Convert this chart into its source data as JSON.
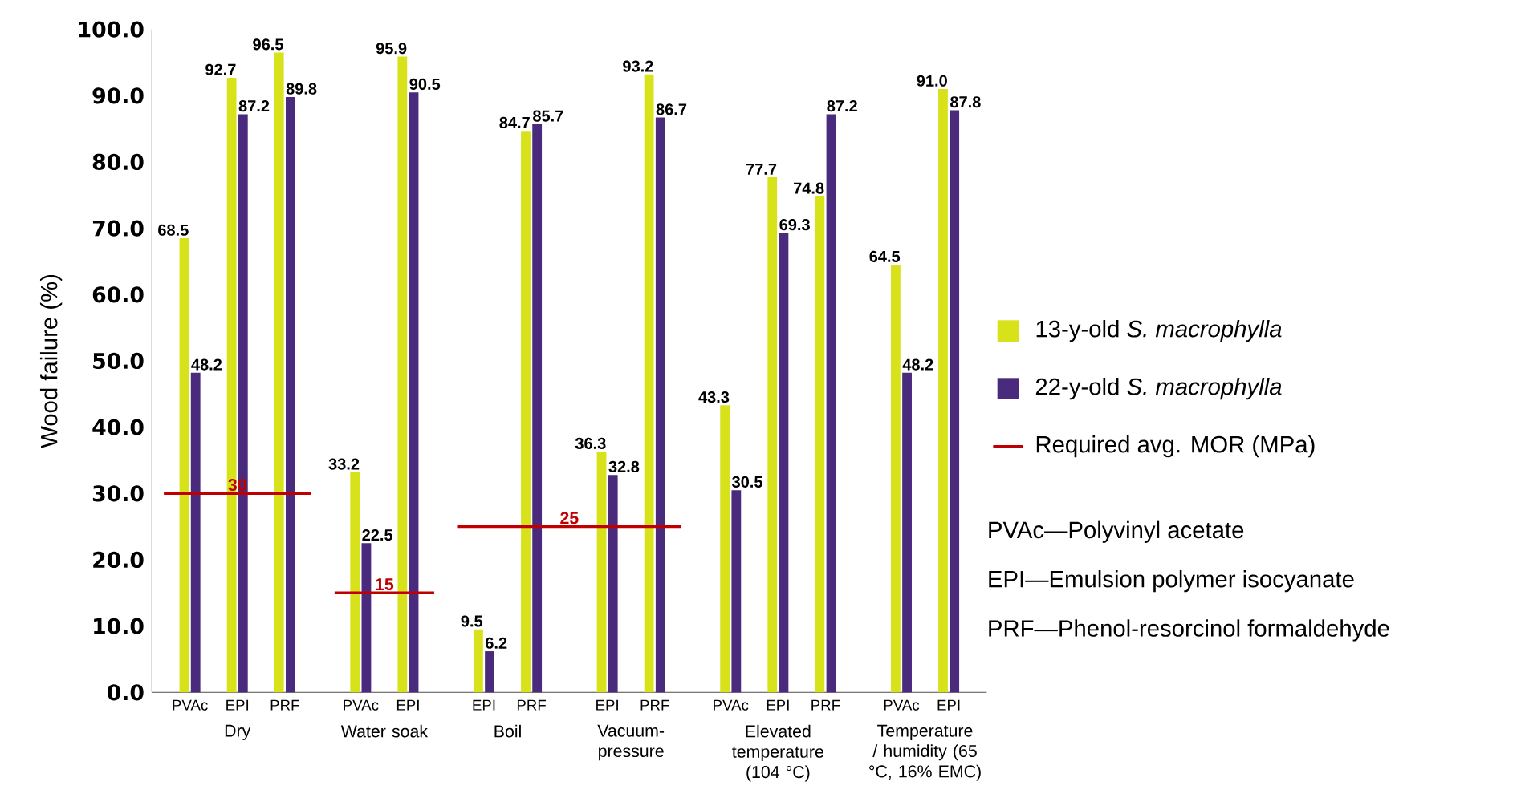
{
  "chart_data": {
    "type": "bar",
    "ylabel": "Wood failure (%)",
    "categories": [
      "PVAc",
      "EPI",
      "PRF",
      "PVAc",
      "EPI",
      "EPI",
      "PRF",
      "EPI",
      "PRF",
      "PVAc",
      "EPI",
      "PRF",
      "PVAc",
      "EPI"
    ],
    "series": [
      {
        "name": "13-y-old *S. macrophylla*",
        "color": "#d8e21a",
        "values": [
          68.5,
          92.7,
          96.5,
          33.2,
          95.9,
          9.5,
          84.7,
          36.3,
          93.2,
          43.3,
          77.7,
          74.8,
          64.5,
          91.0
        ],
        "value_labels": [
          "68.5",
          "92.7",
          "96.5",
          "33.2",
          "95.9",
          "9.5",
          "84.7",
          "36.3",
          "93.2",
          "43.3",
          "77.7",
          "74.8",
          "64.5",
          "91.0"
        ]
      },
      {
        "name": "22-y-old *S. macrophylla*",
        "color": "#4a2a7c",
        "values": [
          48.2,
          87.2,
          89.8,
          22.5,
          90.5,
          6.2,
          85.7,
          32.8,
          86.7,
          30.5,
          69.3,
          87.2,
          48.2,
          87.8
        ],
        "value_labels": [
          "48.2",
          "87.2",
          "89.8",
          "22.5",
          "90.5",
          "6.2",
          "85.7",
          "32.8",
          "86.7",
          "30.5",
          "69.3",
          "87.2",
          "48.2",
          "87.8"
        ]
      }
    ],
    "ylim": [
      0,
      100
    ],
    "yticks": [
      {
        "value": 0,
        "label": "0.0"
      },
      {
        "value": 10,
        "label": "10.0"
      },
      {
        "value": 20,
        "label": "20.0"
      },
      {
        "value": 30,
        "label": "30.0"
      },
      {
        "value": 40,
        "label": "40.0"
      },
      {
        "value": 50,
        "label": "50.0"
      },
      {
        "value": 60,
        "label": "60.0"
      },
      {
        "value": 70,
        "label": "70.0"
      },
      {
        "value": 80,
        "label": "80.0"
      },
      {
        "value": 90,
        "label": "90.0"
      },
      {
        "value": 100,
        "label": "100.0"
      }
    ],
    "ref_lines": [
      {
        "axis": "y",
        "value": 30,
        "label": "30",
        "color": "#c00000"
      },
      {
        "axis": "y",
        "value": 15,
        "label": "15",
        "color": "#c00000"
      },
      {
        "axis": "y",
        "value": 25,
        "label": "25",
        "color": "#c00000"
      }
    ],
    "annotations": [
      "Dry",
      "Water soak",
      "Boil",
      "Vacuum-pressure",
      "Elevated temperature (104 °C)",
      "Temperature / humidity (65 °C, 16% EMC)",
      "Required avg. MOR (MPa)",
      "PVAc—Polyvinyl acetate",
      "EPI—Emulsion polymer isocyanate",
      "PRF—Phenol-resorcinol formaldehyde"
    ],
    "legend": "right"
  }
}
